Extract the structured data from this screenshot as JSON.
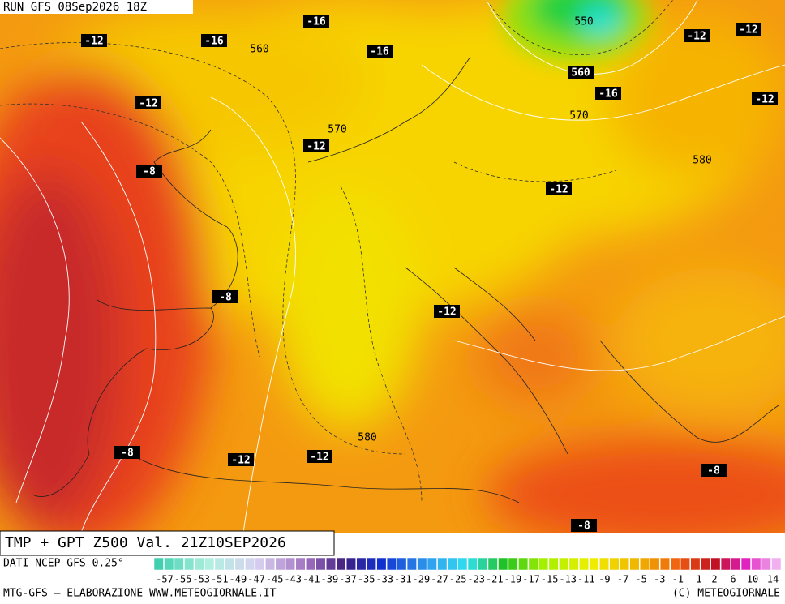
{
  "header": {
    "run": "RUN GFS 08Sep2026 18Z"
  },
  "map": {
    "temperature_labels": [
      "-16",
      "-12",
      "-16",
      "-16",
      "-12",
      "-12",
      "-16",
      "-12",
      "-12",
      "-12",
      "-8",
      "-12",
      "-8",
      "-12",
      "-8",
      "-12",
      "-12",
      "-8",
      "-8",
      "560"
    ],
    "geopotential_labels": [
      "560",
      "550",
      "570",
      "570",
      "580",
      "580"
    ]
  },
  "footer": {
    "product": "TMP + GPT Z500 Val. 21Z10SEP2026",
    "source": "DATI NCEP GFS 0.25°",
    "scale_labels": [
      "-57",
      "-55",
      "-53",
      "-51",
      "-49",
      "-47",
      "-45",
      "-43",
      "-41",
      "-39",
      "-37",
      "-35",
      "-33",
      "-31",
      "-29",
      "-27",
      "-25",
      "-23",
      "-21",
      "-19",
      "-17",
      "-15",
      "-13",
      "-11",
      "-9",
      "-7",
      "-5",
      "-3",
      "-1",
      "1",
      "2",
      "6",
      "10",
      "14"
    ],
    "credit": "MTG-GFS — ELABORAZIONE WWW.METEOGIORNALE.IT",
    "copyright": "(C) METEOGIORNALE"
  }
}
